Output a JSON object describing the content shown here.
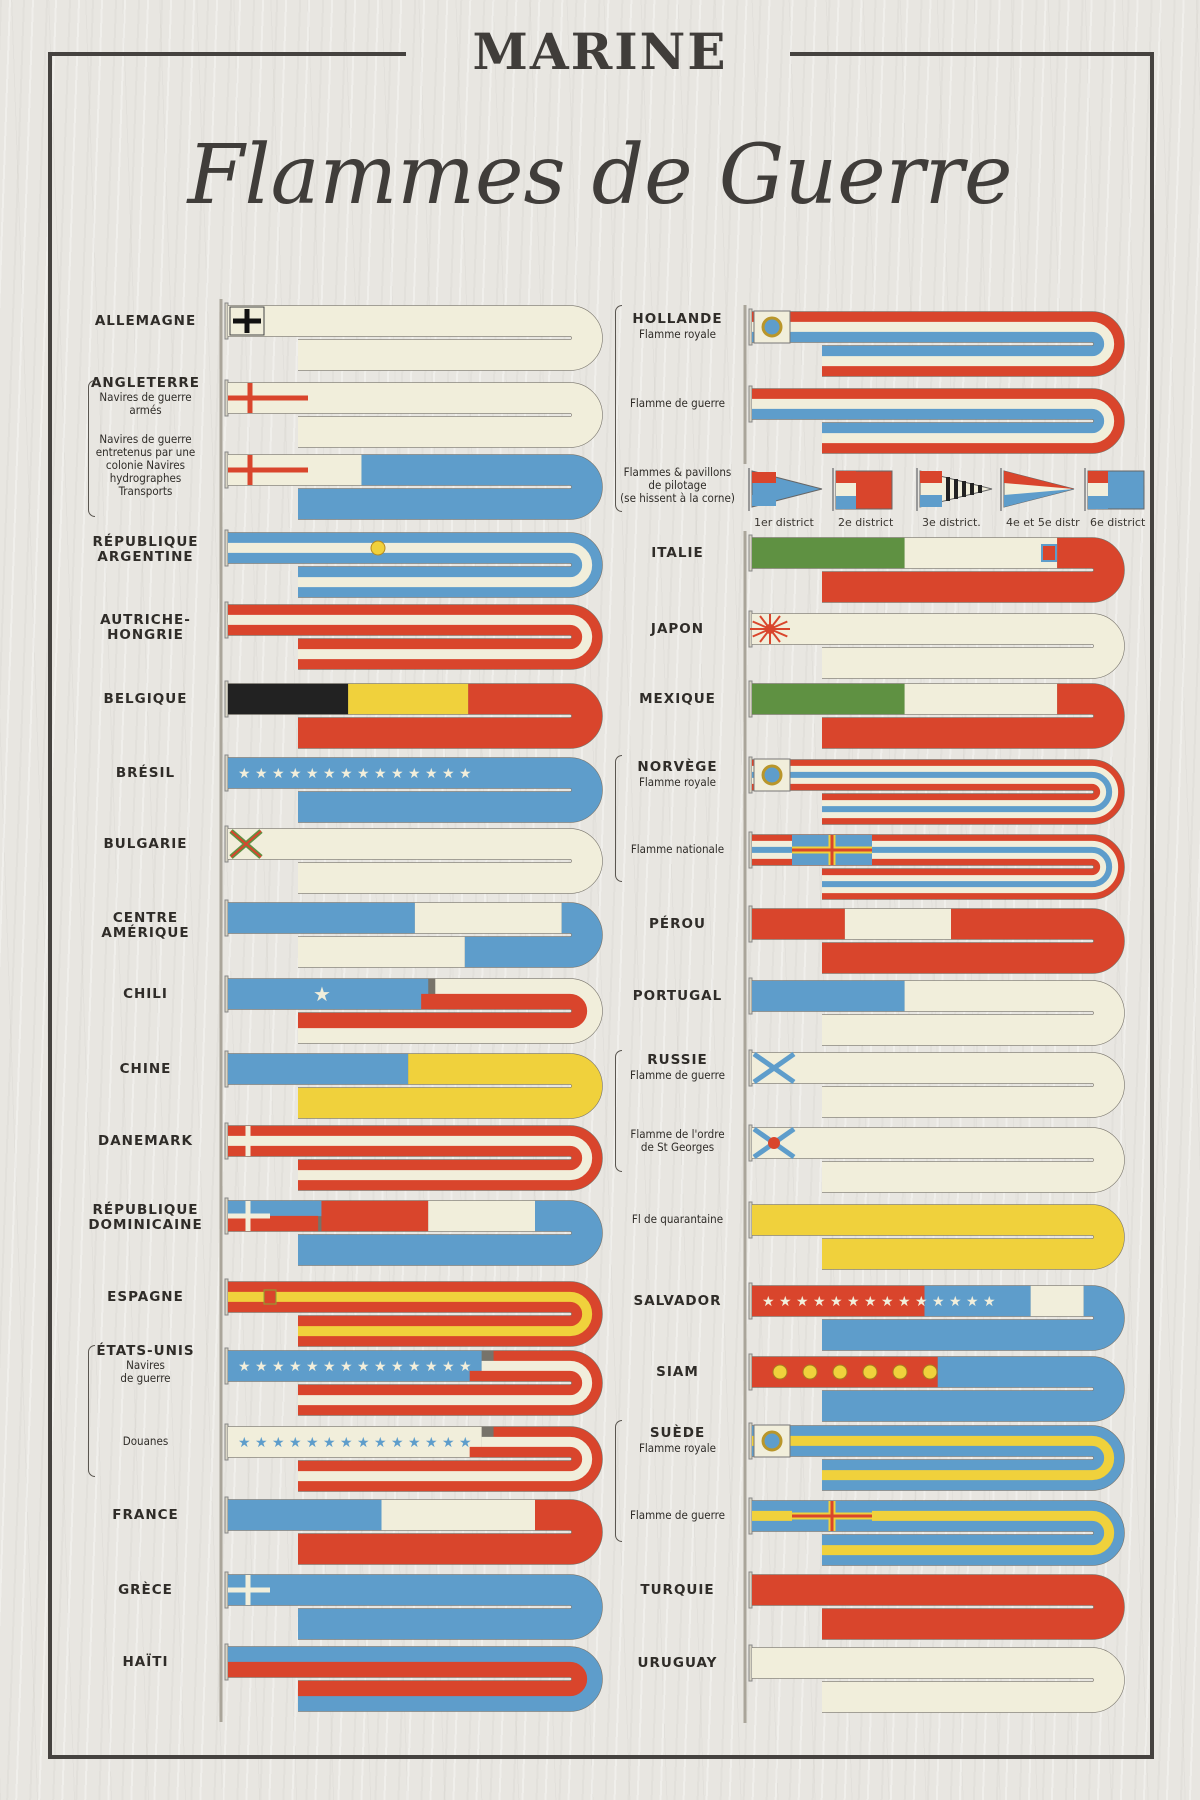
{
  "header": {
    "title": "MARINE",
    "subtitle": "Flammes de Guerre"
  },
  "colors": {
    "red": "#d9452c",
    "white": "#f1eedb",
    "blue": "#5e9dcb",
    "yellow": "#f0d13c",
    "green": "#5f9142",
    "black": "#222222",
    "outline": "#77736a"
  },
  "left": [
    {
      "name": "ALLEMAGNE",
      "sub": [],
      "sections": [
        [
          1,
          [
            "white"
          ]
        ]
      ],
      "emblem": "iron-cross-icon"
    },
    {
      "name": "ANGLETERRE",
      "sub": [
        "Navires de guerre",
        "armés"
      ],
      "sections": [
        [
          1,
          [
            "white"
          ]
        ]
      ],
      "emblem": "st-george-cross-icon"
    },
    {
      "name": "",
      "sub": [
        "Navires de guerre",
        "entretenus par une",
        "colonie  Navires",
        "hydrographes",
        "Transports"
      ],
      "sections": [
        [
          0.2,
          [
            "white"
          ]
        ],
        [
          1,
          [
            "blue"
          ]
        ]
      ],
      "emblem": "st-george-cross-icon"
    },
    {
      "name": "RÉPUBLIQUE ARGENTINE",
      "sub": [],
      "sections": [
        [
          1,
          [
            "blue",
            "white",
            "blue"
          ]
        ]
      ],
      "emblem": "sun-icon"
    },
    {
      "name": "AUTRICHE-HONGRIE",
      "sub": [],
      "sections": [
        [
          1,
          [
            "red",
            "white",
            "red"
          ]
        ]
      ],
      "emblem": ""
    },
    {
      "name": "BELGIQUE",
      "sub": [],
      "sections": [
        [
          0.18,
          [
            "black"
          ]
        ],
        [
          0.36,
          [
            "yellow"
          ]
        ],
        [
          1,
          [
            "red"
          ]
        ]
      ],
      "emblem": ""
    },
    {
      "name": "BRÉSIL",
      "sub": [],
      "sections": [
        [
          1,
          [
            "blue"
          ]
        ]
      ],
      "emblem": "stars-icon"
    },
    {
      "name": "BULGARIE",
      "sub": [],
      "sections": [
        [
          1,
          [
            "white"
          ]
        ]
      ],
      "emblem": "bulgarian-cross-icon"
    },
    {
      "name": "CENTRE AMÉRIQUE",
      "sub": [],
      "sections": [
        [
          0.28,
          [
            "blue"
          ]
        ],
        [
          0.5,
          [
            "white"
          ]
        ],
        [
          0.75,
          [
            "blue"
          ]
        ],
        [
          1,
          [
            "white"
          ]
        ]
      ],
      "emblem": ""
    },
    {
      "name": "CHILI",
      "sub": [],
      "sections": [
        [
          0.3,
          [
            "blue"
          ]
        ],
        [
          1,
          [
            "white",
            "red"
          ]
        ]
      ],
      "emblem": "star-icon"
    },
    {
      "name": "CHINE",
      "sub": [],
      "sections": [
        [
          0.27,
          [
            "blue"
          ]
        ],
        [
          1,
          [
            "yellow"
          ]
        ]
      ],
      "emblem": ""
    },
    {
      "name": "DANEMARK",
      "sub": [],
      "sections": [
        [
          1,
          [
            "red",
            "white",
            "red"
          ]
        ]
      ],
      "emblem": "dannebrog-cross-icon"
    },
    {
      "name": "RÉPUBLIQUE DOMINICAINE",
      "sub": [],
      "sections": [
        [
          0.14,
          [
            "blue",
            "red"
          ]
        ],
        [
          0.3,
          [
            "red"
          ]
        ],
        [
          0.46,
          [
            "white"
          ]
        ],
        [
          1,
          [
            "blue"
          ]
        ]
      ],
      "emblem": "white-cross-icon"
    },
    {
      "name": "ESPAGNE",
      "sub": [],
      "sections": [
        [
          1,
          [
            "red",
            "yellow",
            "red"
          ]
        ]
      ],
      "emblem": "spanish-arms-icon"
    },
    {
      "name": "ÉTATS-UNIS",
      "sub": [
        "Navires",
        "de guerre"
      ],
      "sections": [
        [
          0.38,
          [
            "blue"
          ]
        ],
        [
          1,
          [
            "red",
            "white",
            "red"
          ]
        ]
      ],
      "emblem": "stars-icon"
    },
    {
      "name": "",
      "sub": [
        "Douanes"
      ],
      "sections": [
        [
          0.38,
          [
            "white"
          ]
        ],
        [
          1,
          [
            "red",
            "white",
            "red"
          ]
        ]
      ],
      "emblem": "blue-stars-icon"
    },
    {
      "name": "FRANCE",
      "sub": [],
      "sections": [
        [
          0.23,
          [
            "blue"
          ]
        ],
        [
          0.46,
          [
            "white"
          ]
        ],
        [
          1,
          [
            "red"
          ]
        ]
      ],
      "emblem": ""
    },
    {
      "name": "GRÈCE",
      "sub": [],
      "sections": [
        [
          1,
          [
            "blue"
          ]
        ]
      ],
      "emblem": "white-cross-icon"
    },
    {
      "name": "HAÏTI",
      "sub": [],
      "sections": [
        [
          1,
          [
            "blue",
            "red"
          ]
        ]
      ],
      "emblem": ""
    }
  ],
  "right": [
    {
      "name": "HOLLANDE",
      "sub": [
        "Flamme royale"
      ],
      "sections": [
        [
          1,
          [
            "red",
            "white",
            "blue"
          ]
        ]
      ],
      "emblem": "royal-arms-icon"
    },
    {
      "name": "",
      "sub": [
        "Flamme de guerre"
      ],
      "sections": [
        [
          1,
          [
            "red",
            "white",
            "blue"
          ]
        ]
      ],
      "emblem": ""
    },
    {
      "name": "",
      "sub": [
        "Flammes & pavillons",
        "de pilotage",
        "(se hissent à la corne)"
      ],
      "pilot": [
        {
          "label": "1er district",
          "icon": "pennant-1-icon"
        },
        {
          "label": "2e district",
          "icon": "flag-2-icon"
        },
        {
          "label": "3e district.",
          "icon": "pennant-3-icon"
        },
        {
          "label": "4e et 5e distr",
          "icon": "pennant-4-icon"
        },
        {
          "label": "6e district",
          "icon": "flag-6-icon"
        }
      ]
    },
    {
      "name": "ITALIE",
      "sub": [],
      "sections": [
        [
          0.23,
          [
            "green"
          ]
        ],
        [
          0.46,
          [
            "white"
          ]
        ],
        [
          1,
          [
            "red"
          ]
        ]
      ],
      "emblem": "savoy-arms-icon"
    },
    {
      "name": "JAPON",
      "sub": [],
      "sections": [
        [
          1,
          [
            "white"
          ]
        ]
      ],
      "emblem": "rising-sun-icon"
    },
    {
      "name": "MEXIQUE",
      "sub": [],
      "sections": [
        [
          0.23,
          [
            "green"
          ]
        ],
        [
          0.46,
          [
            "white"
          ]
        ],
        [
          1,
          [
            "red"
          ]
        ]
      ],
      "emblem": ""
    },
    {
      "name": "NORVÈGE",
      "sub": [
        "Flamme royale"
      ],
      "sections": [
        [
          1,
          [
            "red",
            "white",
            "blue",
            "white",
            "red"
          ]
        ]
      ],
      "emblem": "royal-arms-icon"
    },
    {
      "name": "",
      "sub": [
        "Flamme nationale"
      ],
      "sections": [
        [
          1,
          [
            "red",
            "white",
            "blue",
            "white",
            "red"
          ]
        ]
      ],
      "emblem": "union-cross-icon"
    },
    {
      "name": "PÉROU",
      "sub": [],
      "sections": [
        [
          0.14,
          [
            "red"
          ]
        ],
        [
          0.3,
          [
            "white"
          ]
        ],
        [
          1,
          [
            "red"
          ]
        ]
      ],
      "emblem": ""
    },
    {
      "name": "PORTUGAL",
      "sub": [],
      "sections": [
        [
          0.23,
          [
            "blue"
          ]
        ],
        [
          1,
          [
            "white"
          ]
        ]
      ],
      "emblem": ""
    },
    {
      "name": "RUSSIE",
      "sub": [
        "Flamme de guerre"
      ],
      "sections": [
        [
          1,
          [
            "white"
          ]
        ]
      ],
      "emblem": "st-andrew-cross-icon"
    },
    {
      "name": "",
      "sub": [
        "Flamme de l'ordre",
        "de St Georges"
      ],
      "sections": [
        [
          1,
          [
            "white"
          ]
        ]
      ],
      "emblem": "st-george-order-icon"
    },
    {
      "name": "",
      "sub": [
        "Fl de quarantaine"
      ],
      "sections": [
        [
          1,
          [
            "yellow"
          ]
        ]
      ],
      "emblem": ""
    },
    {
      "name": "SALVADOR",
      "sub": [],
      "sections": [
        [
          0.26,
          [
            "red"
          ]
        ],
        [
          0.42,
          [
            "blue"
          ]
        ],
        [
          0.5,
          [
            "white"
          ]
        ],
        [
          1,
          [
            "blue"
          ]
        ]
      ],
      "emblem": "stars-icon"
    },
    {
      "name": "SIAM",
      "sub": [],
      "sections": [
        [
          0.28,
          [
            "red"
          ]
        ],
        [
          1,
          [
            "blue"
          ]
        ]
      ],
      "emblem": "yellow-flowers-icon"
    },
    {
      "name": "SUÈDE",
      "sub": [
        "Flamme royale"
      ],
      "sections": [
        [
          1,
          [
            "blue",
            "yellow",
            "blue"
          ]
        ]
      ],
      "emblem": "royal-arms-icon"
    },
    {
      "name": "",
      "sub": [
        "Flamme de guerre"
      ],
      "sections": [
        [
          1,
          [
            "blue",
            "yellow",
            "blue"
          ]
        ]
      ],
      "emblem": "union-cross-icon"
    },
    {
      "name": "TURQUIE",
      "sub": [],
      "sections": [
        [
          1,
          [
            "red"
          ]
        ]
      ],
      "emblem": ""
    },
    {
      "name": "URUGUAY",
      "sub": [],
      "sections": [
        [
          1,
          [
            "white"
          ]
        ]
      ],
      "emblem": ""
    }
  ]
}
